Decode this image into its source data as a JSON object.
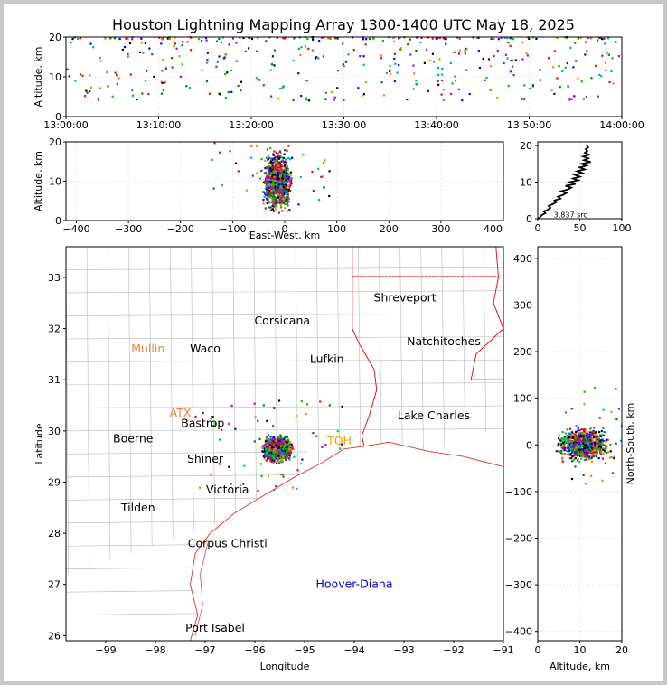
{
  "figure": {
    "title": "Houston Lightning Mapping Array 1300-1400 UTC May 18, 2025"
  },
  "chart_data": [
    {
      "type": "scatter",
      "panel": "time-altitude",
      "ylabel": "Altitude, km",
      "xlim": [
        "13:00:00",
        "14:00:00"
      ],
      "ylim": [
        0,
        20
      ],
      "xticks": [
        "13:00:00",
        "13:10:00",
        "13:20:00",
        "13:30:00",
        "13:40:00",
        "13:50:00",
        "14:00:00"
      ],
      "yticks": [
        "0",
        "10",
        "20"
      ],
      "grid": true,
      "point_distribution": "scattered sources across the whole hour, concentrated 5-20 km, dense band near 20 km"
    },
    {
      "type": "scatter",
      "panel": "east-west-altitude",
      "xlabel": "East-West, km",
      "ylabel": "Altitude, km",
      "xlim": [
        -420,
        420
      ],
      "ylim": [
        0,
        20
      ],
      "xticks": [
        "−400",
        "−300",
        "−200",
        "−100",
        "0",
        "100",
        "200",
        "300",
        "400"
      ],
      "yticks": [
        "0",
        "10",
        "20"
      ],
      "grid": true,
      "cluster": {
        "x_center": -15,
        "x_spread": 35,
        "alt_min": 0,
        "alt_max": 20
      }
    },
    {
      "type": "line",
      "panel": "altitude-histogram",
      "xlim": [
        0,
        100
      ],
      "ylim": [
        0,
        21
      ],
      "xticks": [
        "0",
        "50",
        "100"
      ],
      "yticks": [
        "0",
        "10",
        "20"
      ],
      "annotation": "3,837 src",
      "profile": [
        [
          1,
          0
        ],
        [
          3,
          0.5
        ],
        [
          5,
          1
        ],
        [
          9,
          1.5
        ],
        [
          7,
          2
        ],
        [
          12,
          2.5
        ],
        [
          15,
          3
        ],
        [
          13,
          3.5
        ],
        [
          18,
          4
        ],
        [
          22,
          4.5
        ],
        [
          20,
          5
        ],
        [
          27,
          5.5
        ],
        [
          24,
          6
        ],
        [
          30,
          6.5
        ],
        [
          34,
          7
        ],
        [
          28,
          7.5
        ],
        [
          36,
          8
        ],
        [
          40,
          8.5
        ],
        [
          33,
          9
        ],
        [
          45,
          9.5
        ],
        [
          38,
          10
        ],
        [
          48,
          10.5
        ],
        [
          42,
          11
        ],
        [
          50,
          11.5
        ],
        [
          44,
          12
        ],
        [
          53,
          12.5
        ],
        [
          47,
          13
        ],
        [
          56,
          13.5
        ],
        [
          50,
          14
        ],
        [
          58,
          14.5
        ],
        [
          52,
          15
        ],
        [
          63,
          15.5
        ],
        [
          55,
          16
        ],
        [
          60,
          16.5
        ],
        [
          54,
          17
        ],
        [
          61,
          17.5
        ],
        [
          56,
          18
        ],
        [
          59,
          18.5
        ],
        [
          57,
          19
        ],
        [
          60,
          19.5
        ],
        [
          58,
          20
        ]
      ]
    },
    {
      "type": "scatter",
      "panel": "plan-view-map",
      "xlabel": "Longitude",
      "ylabel": "Latitude",
      "xlim": [
        -99.8,
        -91
      ],
      "ylim": [
        25.9,
        33.6
      ],
      "xticks": [
        "−99",
        "−98",
        "−97",
        "−96",
        "−95",
        "−94",
        "−93",
        "−92",
        "−91"
      ],
      "yticks": [
        "26",
        "27",
        "28",
        "29",
        "30",
        "31",
        "32",
        "33"
      ],
      "cluster": {
        "lon_center": -95.55,
        "lat_center": 29.65,
        "lon_spread": 0.35,
        "lat_spread": 0.3
      },
      "cities": [
        {
          "name": "Shreveport",
          "lon": -92.98,
          "lat": 32.6,
          "color": "#000000"
        },
        {
          "name": "Corsicana",
          "lon": -95.45,
          "lat": 32.15,
          "color": "#000000"
        },
        {
          "name": "Mullin",
          "lon": -98.15,
          "lat": 31.6,
          "color": "#f08040"
        },
        {
          "name": "Waco",
          "lon": -97.0,
          "lat": 31.6,
          "color": "#000000"
        },
        {
          "name": "Natchitoches",
          "lon": -92.2,
          "lat": 31.75,
          "color": "#000000"
        },
        {
          "name": "Lufkin",
          "lon": -94.55,
          "lat": 31.4,
          "color": "#000000"
        },
        {
          "name": "ATX",
          "lon": -97.5,
          "lat": 30.35,
          "color": "#f08040"
        },
        {
          "name": "Bastrop",
          "lon": -97.05,
          "lat": 30.15,
          "color": "#000000"
        },
        {
          "name": "Lake Charles",
          "lon": -92.4,
          "lat": 30.3,
          "color": "#000000"
        },
        {
          "name": "Boerne",
          "lon": -98.45,
          "lat": 29.85,
          "color": "#000000"
        },
        {
          "name": "TOH",
          "lon": -94.3,
          "lat": 29.8,
          "color": "#f0a000"
        },
        {
          "name": "Shiner",
          "lon": -97.0,
          "lat": 29.45,
          "color": "#000000"
        },
        {
          "name": "Victoria",
          "lon": -96.55,
          "lat": 28.85,
          "color": "#000000"
        },
        {
          "name": "Tilden",
          "lon": -98.35,
          "lat": 28.5,
          "color": "#000000"
        },
        {
          "name": "Corpus Christi",
          "lon": -96.55,
          "lat": 27.8,
          "color": "#000000"
        },
        {
          "name": "Hoover-Diana",
          "lon": -94.0,
          "lat": 27.0,
          "color": "#0000cc"
        },
        {
          "name": "Port Isabel",
          "lon": -96.8,
          "lat": 26.15,
          "color": "#000000"
        }
      ]
    },
    {
      "type": "scatter",
      "panel": "north-south-altitude",
      "xlabel": "Altitude, km",
      "ylabel": "North-South, km",
      "xlim": [
        0,
        20
      ],
      "ylim": [
        -420,
        425
      ],
      "xticks": [
        "0",
        "10",
        "20"
      ],
      "yticks": [
        "−400",
        "−300",
        "−200",
        "−100",
        "0",
        "100",
        "200",
        "300",
        "400"
      ],
      "cluster": {
        "ns_center": 0,
        "ns_spread": 45,
        "alt_min": 0,
        "alt_max": 20
      }
    }
  ]
}
